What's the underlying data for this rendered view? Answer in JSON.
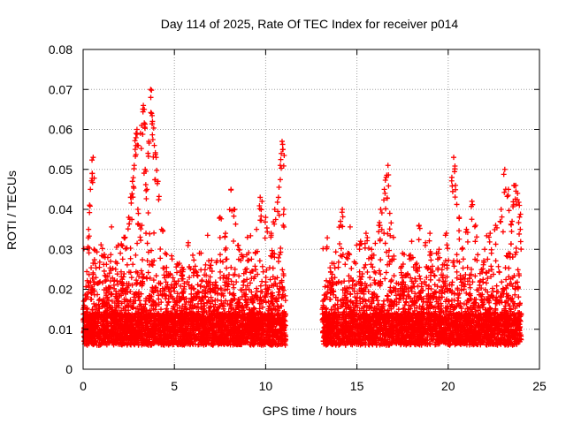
{
  "chart_data": {
    "type": "scatter",
    "title": "Day 114 of 2025, Rate Of TEC Index for receiver p014",
    "xlabel": "GPS time / hours",
    "ylabel": "ROTI / TECUs",
    "xlim": [
      0,
      25
    ],
    "ylim": [
      0,
      0.08
    ],
    "xticks": [
      0,
      5,
      10,
      15,
      20,
      25
    ],
    "yticks": [
      0,
      0.01,
      0.02,
      0.03,
      0.04,
      0.05,
      0.06,
      0.07,
      0.08
    ],
    "xtick_labels": [
      "0",
      "5",
      "10",
      "15",
      "20",
      "25"
    ],
    "ytick_labels": [
      "0",
      "0.01",
      "0.02",
      "0.03",
      "0.04",
      "0.05",
      "0.06",
      "0.07",
      "0.08"
    ],
    "grid": true,
    "marker": "+",
    "color": "#ff0000",
    "series": [
      {
        "name": "ROTI",
        "segments": [
          [
            0,
            11.1
          ],
          [
            13.1,
            24.0
          ]
        ],
        "points": [
          [
            0.3,
            0.035
          ],
          [
            0.4,
            0.045
          ],
          [
            0.5,
            0.049
          ],
          [
            0.55,
            0.053
          ],
          [
            0.6,
            0.03
          ],
          [
            1.2,
            0.028
          ],
          [
            1.5,
            0.027
          ],
          [
            2.1,
            0.031
          ],
          [
            2.3,
            0.033
          ],
          [
            2.5,
            0.038
          ],
          [
            2.6,
            0.043
          ],
          [
            2.7,
            0.047
          ],
          [
            2.8,
            0.051
          ],
          [
            2.85,
            0.055
          ],
          [
            2.9,
            0.059
          ],
          [
            2.95,
            0.06
          ],
          [
            3.0,
            0.04
          ],
          [
            3.1,
            0.036
          ],
          [
            3.2,
            0.061
          ],
          [
            3.3,
            0.066
          ],
          [
            3.35,
            0.065
          ],
          [
            3.4,
            0.05
          ],
          [
            3.5,
            0.045
          ],
          [
            3.6,
            0.057
          ],
          [
            3.7,
            0.07
          ],
          [
            3.75,
            0.064
          ],
          [
            3.8,
            0.062
          ],
          [
            3.9,
            0.056
          ],
          [
            4.0,
            0.053
          ],
          [
            4.1,
            0.047
          ],
          [
            4.3,
            0.035
          ],
          [
            4.5,
            0.029
          ],
          [
            5.5,
            0.025
          ],
          [
            6.5,
            0.022
          ],
          [
            7.0,
            0.026
          ],
          [
            7.5,
            0.038
          ],
          [
            7.8,
            0.034
          ],
          [
            8.1,
            0.045
          ],
          [
            8.3,
            0.04
          ],
          [
            8.5,
            0.031
          ],
          [
            9.0,
            0.033
          ],
          [
            9.5,
            0.035
          ],
          [
            9.7,
            0.043
          ],
          [
            9.8,
            0.042
          ],
          [
            10.0,
            0.038
          ],
          [
            10.3,
            0.034
          ],
          [
            10.5,
            0.04
          ],
          [
            10.7,
            0.043
          ],
          [
            10.8,
            0.051
          ],
          [
            10.9,
            0.057
          ],
          [
            10.95,
            0.055
          ],
          [
            11.0,
            0.04
          ],
          [
            14.1,
            0.037
          ],
          [
            14.2,
            0.04
          ],
          [
            14.5,
            0.029
          ],
          [
            15.2,
            0.032
          ],
          [
            15.5,
            0.034
          ],
          [
            15.8,
            0.03
          ],
          [
            16.2,
            0.036
          ],
          [
            16.3,
            0.04
          ],
          [
            16.5,
            0.045
          ],
          [
            16.6,
            0.048
          ],
          [
            16.7,
            0.051
          ],
          [
            16.8,
            0.039
          ],
          [
            17.0,
            0.033
          ],
          [
            17.5,
            0.029
          ],
          [
            18.0,
            0.032
          ],
          [
            18.4,
            0.036
          ],
          [
            19.0,
            0.034
          ],
          [
            19.5,
            0.03
          ],
          [
            19.9,
            0.034
          ],
          [
            20.2,
            0.048
          ],
          [
            20.3,
            0.053
          ],
          [
            20.4,
            0.046
          ],
          [
            20.6,
            0.038
          ],
          [
            21.0,
            0.035
          ],
          [
            21.3,
            0.042
          ],
          [
            21.5,
            0.036
          ],
          [
            22.0,
            0.03
          ],
          [
            22.3,
            0.034
          ],
          [
            22.6,
            0.036
          ],
          [
            22.9,
            0.04
          ],
          [
            23.1,
            0.05
          ],
          [
            23.3,
            0.045
          ],
          [
            23.5,
            0.037
          ],
          [
            23.6,
            0.046
          ],
          [
            23.7,
            0.046
          ],
          [
            23.8,
            0.044
          ],
          [
            23.9,
            0.041
          ],
          [
            23.95,
            0.035
          ]
        ],
        "baseline": 0.011,
        "typical_range": [
          0.004,
          0.03
        ]
      }
    ]
  }
}
